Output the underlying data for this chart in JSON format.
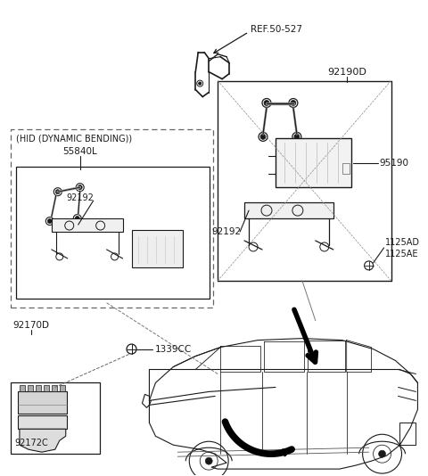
{
  "bg_color": "#ffffff",
  "line_color": "#1a1a1a",
  "labels": {
    "ref_50_527": "REF.50-527",
    "n92190D": "92190D",
    "n95190": "95190",
    "n92192_right": "92192",
    "n1125AD": "1125AD",
    "n1125AE": "1125AE",
    "hid_label": "(HID (DYNAMIC BENDING))",
    "n55840L": "55840L",
    "n92192_left": "92192",
    "n92170D": "92170D",
    "n92172C": "92172C",
    "n1339CC": "1339CC"
  },
  "fig_width": 4.8,
  "fig_height": 5.34,
  "dpi": 100
}
